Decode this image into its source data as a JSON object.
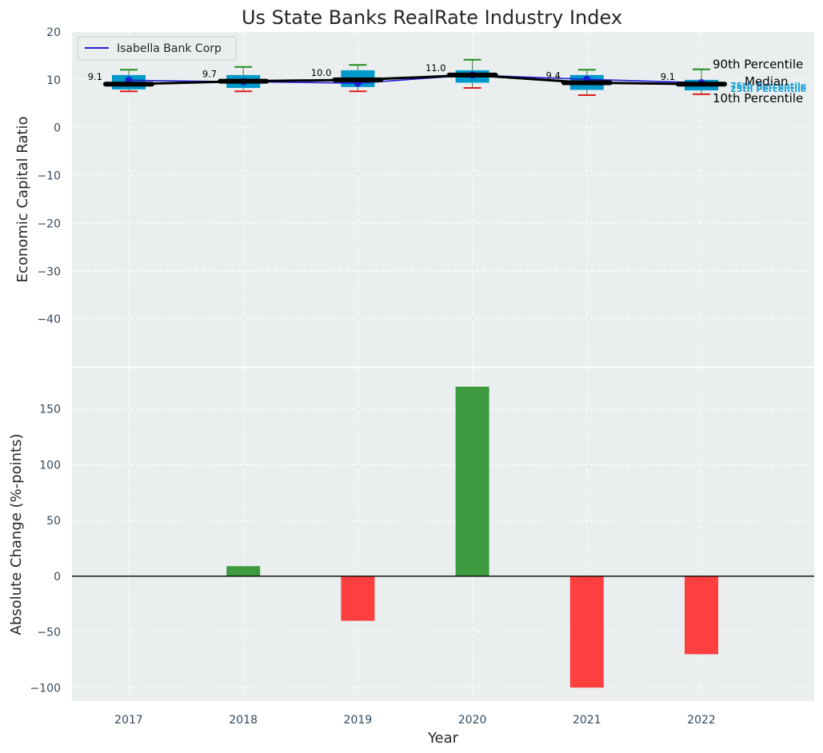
{
  "title": "Us State Banks RealRate Industry Index",
  "colors": {
    "panel_bg": "#eaeeef",
    "grid": "#ffffff",
    "box_fill": "#0099cc",
    "company_line": "#1f1fd6",
    "median_line": "#000000",
    "whisker_top": "#1f8f1f",
    "whisker_bottom": "#dd1c1c",
    "bar_up": "#2e9330",
    "bar_down": "#ff3030"
  },
  "chart_data": [
    {
      "type": "box-line",
      "ylabel": "Economic Capital Ratio",
      "ylim": [
        -50,
        20
      ],
      "yticks": [
        20,
        10,
        0,
        -10,
        -20,
        -30,
        -40
      ],
      "years": [
        "2017",
        "2018",
        "2019",
        "2020",
        "2021",
        "2022"
      ],
      "legend": {
        "entry": "Isabella Bank Corp",
        "placement": "top-left"
      },
      "series": [
        {
          "name": "Isabella Bank Corp",
          "values": [
            9.9,
            9.6,
            9.3,
            11.0,
            10.1,
            9.4
          ]
        }
      ],
      "median": [
        9.1,
        9.7,
        10.0,
        11.0,
        9.4,
        9.1
      ],
      "median_labels": [
        "9.1",
        "9.7",
        "10.0",
        "11.0",
        "9.4",
        "9.1"
      ],
      "p10": [
        7.6,
        7.6,
        7.6,
        8.3,
        6.8,
        7.0
      ],
      "p25": [
        8.0,
        8.3,
        8.5,
        9.4,
        7.9,
        7.8
      ],
      "p75": [
        11.0,
        11.0,
        12.0,
        12.0,
        11.0,
        10.0
      ],
      "p90": [
        12.1,
        12.7,
        13.1,
        14.2,
        12.1,
        12.2
      ],
      "annotations": {
        "p90": "90th Percentile",
        "median": "Median",
        "p10": "10th Percentile",
        "p75": "75th Percentile",
        "p25": "25th Percentile"
      }
    },
    {
      "type": "bar",
      "xlabel": "Year",
      "ylabel": "Absolute Change (%-points)",
      "ylim": [
        -112,
        187
      ],
      "yticks": [
        150,
        100,
        50,
        0,
        -50,
        -100
      ],
      "categories": [
        "2017",
        "2018",
        "2019",
        "2020",
        "2021",
        "2022"
      ],
      "values": [
        0,
        9,
        -40,
        170,
        -100,
        -70
      ]
    }
  ]
}
